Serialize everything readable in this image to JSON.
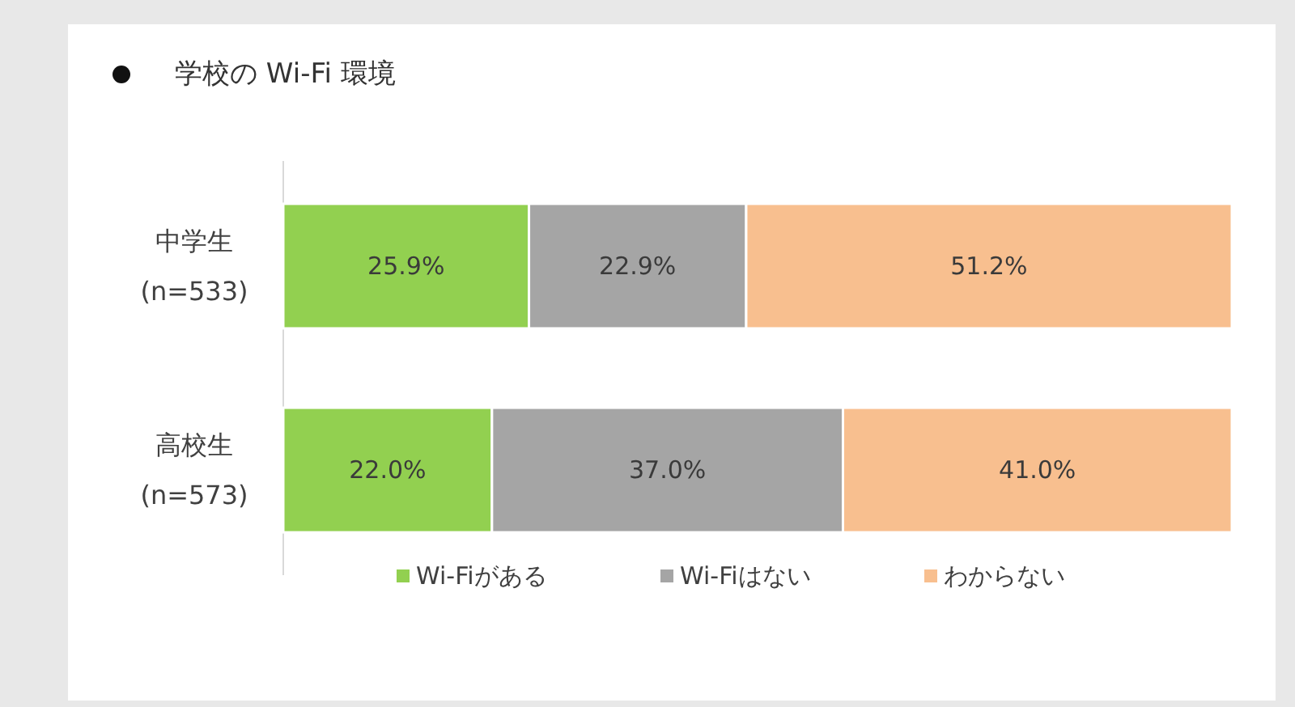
{
  "chart_data": {
    "type": "bar",
    "orientation": "horizontal",
    "stacked": true,
    "title": "学校の Wi-Fi 環境",
    "categories": [
      "中学生\n(n=533)",
      "高校生\n(n=573)"
    ],
    "series": [
      {
        "name": "Wi-Fiがある",
        "color": "#92d050",
        "values": [
          25.9,
          22.0
        ],
        "value_labels": [
          "25.9%",
          "22.0%"
        ]
      },
      {
        "name": "Wi-Fiはない",
        "color": "#a5a5a5",
        "values": [
          22.9,
          37.0
        ],
        "value_labels": [
          "22.9%",
          "37.0%"
        ]
      },
      {
        "name": "わからない",
        "color": "#f8bf8f",
        "values": [
          51.2,
          41.0
        ],
        "value_labels": [
          "51.2%",
          "41.0%"
        ]
      }
    ],
    "legend": "bottom"
  }
}
